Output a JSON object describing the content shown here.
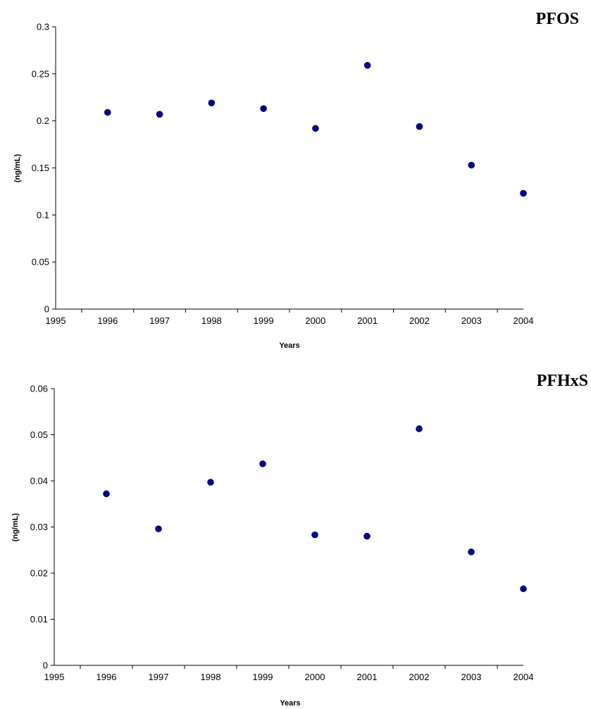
{
  "chart_data": [
    {
      "type": "scatter",
      "title": "PFOS",
      "xlabel": "Years",
      "ylabel": "(ng/mL)",
      "xlim": [
        1995,
        2004
      ],
      "ylim": [
        0,
        0.3
      ],
      "x_ticks": [
        "1995",
        "1996",
        "1997",
        "1998",
        "1999",
        "2000",
        "2001",
        "2002",
        "2003",
        "2004"
      ],
      "y_ticks": [
        "0",
        "0.05",
        "0.1",
        "0.15",
        "0.2",
        "0.25",
        "0.3"
      ],
      "grid": false,
      "marker_color": "#000080",
      "x": [
        1996,
        1997,
        1998,
        1999,
        2000,
        2001,
        2002,
        2003,
        2004
      ],
      "y": [
        0.209,
        0.207,
        0.219,
        0.213,
        0.192,
        0.259,
        0.194,
        0.153,
        0.123
      ]
    },
    {
      "type": "scatter",
      "title": "PFHxS",
      "xlabel": "Years",
      "ylabel": "(ng/mL)",
      "xlim": [
        1995,
        2004
      ],
      "ylim": [
        0,
        0.06
      ],
      "x_ticks": [
        "1995",
        "1996",
        "1997",
        "1998",
        "1999",
        "2000",
        "2001",
        "2002",
        "2003",
        "2004"
      ],
      "y_ticks": [
        "0",
        "0.01",
        "0.02",
        "0.03",
        "0.04",
        "0.05",
        "0.06"
      ],
      "grid": false,
      "marker_color": "#000080",
      "x": [
        1996,
        1997,
        1998,
        1999,
        2000,
        2001,
        2002,
        2003,
        2004
      ],
      "y": [
        0.0372,
        0.0296,
        0.0397,
        0.0437,
        0.0283,
        0.028,
        0.0513,
        0.0246,
        0.0166
      ]
    }
  ]
}
